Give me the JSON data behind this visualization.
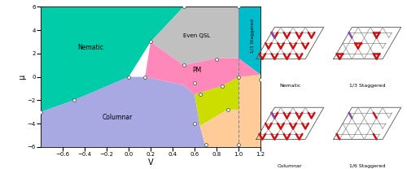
{
  "xlim": [
    -0.8,
    1.2
  ],
  "ylim": [
    -6,
    6
  ],
  "xlabel": "V",
  "ylabel": "μ",
  "xticks": [
    -0.6,
    -0.4,
    -0.2,
    0.0,
    0.2,
    0.4,
    0.6,
    0.8,
    1.0,
    1.2
  ],
  "yticks": [
    -6,
    -4,
    -2,
    0,
    2,
    4,
    6
  ],
  "nematic_color": "#00CCA8",
  "columnar_color": "#9999DD",
  "even_qsl_color": "#C0C0C0",
  "pm_color": "#FF88BB",
  "odd_qsl_color": "#CCDD00",
  "stag13_color": "#00BBCC",
  "stag16_color": "#FFCC99",
  "data_points": [
    [
      -0.8,
      -3.0
    ],
    [
      -0.5,
      -2.0
    ],
    [
      0.0,
      0.0
    ],
    [
      0.15,
      0.0
    ],
    [
      0.2,
      3.0
    ],
    [
      0.5,
      6.0
    ],
    [
      0.5,
      1.0
    ],
    [
      0.6,
      -0.5
    ],
    [
      0.6,
      -4.0
    ],
    [
      0.65,
      -1.5
    ],
    [
      0.7,
      -5.8
    ],
    [
      0.8,
      1.5
    ],
    [
      0.85,
      -0.8
    ],
    [
      0.9,
      -2.8
    ],
    [
      1.0,
      6.0
    ],
    [
      1.0,
      -5.8
    ],
    [
      1.0,
      0.0
    ],
    [
      1.2,
      -0.2
    ]
  ],
  "figure_width": 5.0,
  "figure_height": 2.08,
  "dpi": 100
}
